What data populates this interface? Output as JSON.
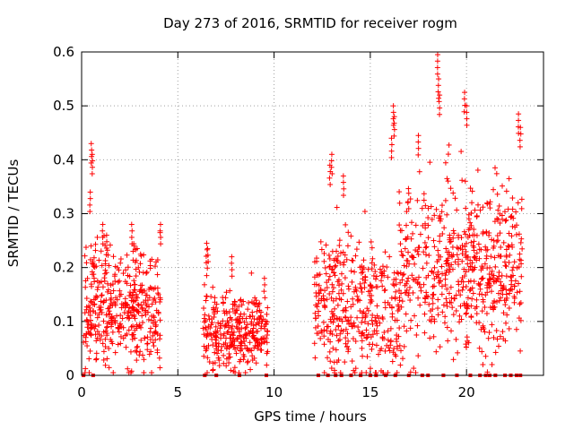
{
  "chart_data": {
    "type": "scatter",
    "title": "Day 273 of 2016, SRMTID for receiver rogm",
    "xlabel": "GPS time / hours",
    "ylabel": "SRMTID / TECUs",
    "xlim": [
      0,
      24
    ],
    "ylim": [
      0,
      0.6
    ],
    "xticks": [
      0,
      5,
      10,
      15,
      20
    ],
    "xtick_labels": [
      "0",
      "5",
      "10",
      "15",
      "20"
    ],
    "yticks": [
      0,
      0.1,
      0.2,
      0.3,
      0.4,
      0.5,
      0.6
    ],
    "ytick_labels": [
      "0",
      "0.1",
      "0.2",
      "0.3",
      "0.4",
      "0.5",
      "0.6"
    ],
    "grid": true,
    "marker": "+",
    "color": "#ff0000",
    "series": [
      {
        "name": "SRMTID",
        "clusters": [
          {
            "x_range": [
              0.1,
              4.1
            ],
            "y_center": 0.13,
            "y_spread": 0.07,
            "count": 420,
            "outliers_x": [
              0.5,
              0.55,
              0.45,
              2.6,
              4.1,
              1.1,
              1.3
            ],
            "outliers_y": [
              0.43,
              0.41,
              0.34,
              0.28,
              0.28,
              0.28,
              0.26
            ]
          },
          {
            "x_range": [
              6.3,
              9.7
            ],
            "y_center": 0.08,
            "y_spread": 0.045,
            "count": 320,
            "outliers_x": [
              6.5,
              6.55,
              7.8,
              9.5
            ],
            "outliers_y": [
              0.245,
              0.235,
              0.22,
              0.18
            ]
          },
          {
            "x_range": [
              12.1,
              16.5
            ],
            "y_center": 0.13,
            "y_spread": 0.08,
            "count": 380,
            "outliers_x": [
              13.0,
              12.9,
              13.6,
              16.2,
              16.25,
              16.1
            ],
            "outliers_y": [
              0.41,
              0.39,
              0.37,
              0.5,
              0.48,
              0.44
            ]
          },
          {
            "x_range": [
              16.5,
              22.9
            ],
            "y_center": 0.2,
            "y_spread": 0.1,
            "count": 600,
            "outliers_x": [
              18.5,
              18.55,
              18.6,
              19.9,
              20.0,
              22.7,
              22.8,
              17.5
            ],
            "outliers_y": [
              0.595,
              0.55,
              0.52,
              0.525,
              0.5,
              0.485,
              0.46,
              0.445
            ]
          }
        ],
        "zero_x": [
          0.1,
          0.6,
          6.4,
          7.0,
          8.2,
          9.6,
          12.3,
          12.8,
          13.2,
          13.5,
          14.0,
          14.5,
          15.0,
          15.3,
          15.8,
          16.3,
          17.0,
          17.7,
          18.0,
          18.8,
          19.5,
          20.2,
          20.7,
          21.0,
          21.2,
          21.5,
          22.0,
          22.3,
          22.6,
          22.8
        ]
      }
    ]
  }
}
